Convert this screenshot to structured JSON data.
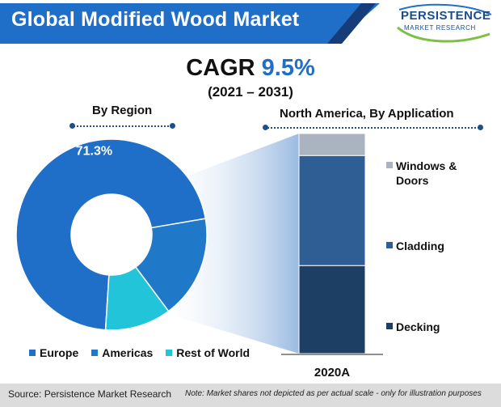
{
  "header": {
    "title": "Global Modified Wood Market",
    "logo_main": "PERSISTENCE",
    "logo_sub": "MARKET RESEARCH"
  },
  "cagr": {
    "label": "CAGR",
    "value": "9.5%",
    "period": "(2021 – 2031)"
  },
  "colors": {
    "brand_blue": "#1f6fc9",
    "navy": "#163d7a",
    "europe": "#1f6fc9",
    "americas": "#1f78c8",
    "rest_of_world": "#22c4d9",
    "windows_doors": "#aab3c0",
    "cladding": "#2e5e94",
    "decking": "#1c3f63"
  },
  "chart_data": [
    {
      "type": "pie",
      "section_label": "By Region",
      "categories": [
        "Europe",
        "Americas",
        "Rest of World"
      ],
      "values": [
        71.3,
        17.5,
        11.2
      ],
      "data_labels": [
        "71.3%",
        "",
        ""
      ],
      "legend_position": "bottom"
    },
    {
      "type": "bar",
      "section_label": "North America, By Application",
      "categories": [
        "2020A"
      ],
      "series": [
        {
          "name": "Decking",
          "values": [
            40
          ]
        },
        {
          "name": "Cladding",
          "values": [
            50
          ]
        },
        {
          "name": "Windows & Doors",
          "values": [
            10
          ]
        }
      ],
      "stacked": true,
      "legend_position": "right"
    }
  ],
  "footer": {
    "source": "Source: Persistence Market Research",
    "note": "Note: Market shares not depicted as per actual scale - only for illustration purposes"
  }
}
